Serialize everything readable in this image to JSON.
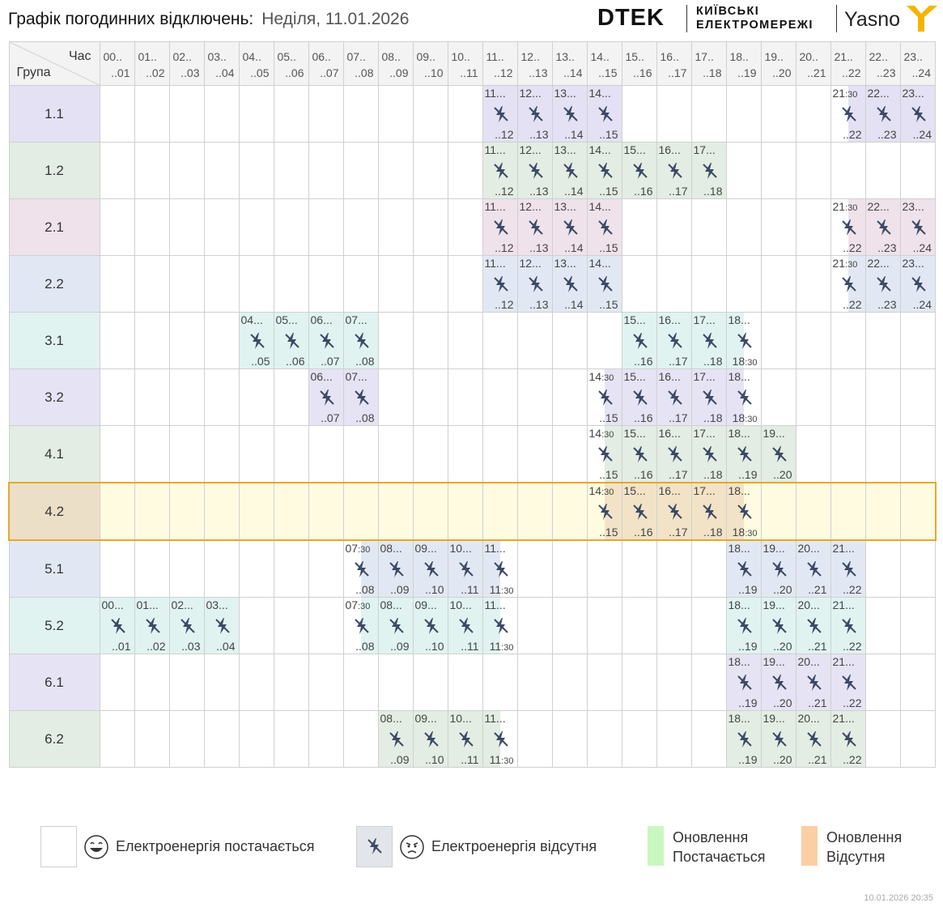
{
  "header": {
    "title": "Графік погодинних відключень:",
    "date": "Неділя, 11.01.2026",
    "logo_dtek": "DTEK",
    "logo_kyiv_line1": "КИЇВСЬКІ",
    "logo_kyiv_line2": "ЕЛЕКТРОМЕРЕЖІ",
    "logo_yasno": "Yasno"
  },
  "table": {
    "corner_hour": "Час",
    "corner_group": "Група",
    "hours": [
      {
        "from": "00..",
        "to": "..01"
      },
      {
        "from": "01..",
        "to": "..02"
      },
      {
        "from": "02..",
        "to": "..03"
      },
      {
        "from": "03..",
        "to": "..04"
      },
      {
        "from": "04..",
        "to": "..05"
      },
      {
        "from": "05..",
        "to": "..06"
      },
      {
        "from": "06..",
        "to": "..07"
      },
      {
        "from": "07..",
        "to": "..08"
      },
      {
        "from": "08..",
        "to": "..09"
      },
      {
        "from": "09..",
        "to": "..10"
      },
      {
        "from": "10..",
        "to": "..11"
      },
      {
        "from": "11..",
        "to": "..12"
      },
      {
        "from": "12..",
        "to": "..13"
      },
      {
        "from": "13..",
        "to": "..14"
      },
      {
        "from": "14..",
        "to": "..15"
      },
      {
        "from": "15..",
        "to": "..16"
      },
      {
        "from": "16..",
        "to": "..17"
      },
      {
        "from": "17..",
        "to": "..18"
      },
      {
        "from": "18..",
        "to": "..19"
      },
      {
        "from": "19..",
        "to": "..20"
      },
      {
        "from": "20..",
        "to": "..21"
      },
      {
        "from": "21..",
        "to": "..22"
      },
      {
        "from": "22..",
        "to": "..23"
      },
      {
        "from": "23..",
        "to": "..24"
      }
    ],
    "groups": [
      {
        "name": "1.1",
        "color": "#e3e1f3",
        "outages": [
          {
            "h": 11
          },
          {
            "h": 12
          },
          {
            "h": 13
          },
          {
            "h": 14
          },
          {
            "h": 21,
            "half": "second"
          },
          {
            "h": 22
          },
          {
            "h": 23
          }
        ]
      },
      {
        "name": "1.2",
        "color": "#e3ede3",
        "outages": [
          {
            "h": 11
          },
          {
            "h": 12
          },
          {
            "h": 13
          },
          {
            "h": 14
          },
          {
            "h": 15
          },
          {
            "h": 16
          },
          {
            "h": 17
          }
        ]
      },
      {
        "name": "2.1",
        "color": "#efe2eb",
        "outages": [
          {
            "h": 11
          },
          {
            "h": 12
          },
          {
            "h": 13
          },
          {
            "h": 14
          },
          {
            "h": 21,
            "half": "second"
          },
          {
            "h": 22
          },
          {
            "h": 23
          }
        ]
      },
      {
        "name": "2.2",
        "color": "#e2e8f3",
        "outages": [
          {
            "h": 11
          },
          {
            "h": 12
          },
          {
            "h": 13
          },
          {
            "h": 14
          },
          {
            "h": 21,
            "half": "second"
          },
          {
            "h": 22
          },
          {
            "h": 23
          }
        ]
      },
      {
        "name": "3.1",
        "color": "#e0f3f1",
        "outages": [
          {
            "h": 4
          },
          {
            "h": 5
          },
          {
            "h": 6
          },
          {
            "h": 7
          },
          {
            "h": 15
          },
          {
            "h": 16
          },
          {
            "h": 17
          },
          {
            "h": 18,
            "half": "first"
          }
        ]
      },
      {
        "name": "3.2",
        "color": "#e6e3f4",
        "outages": [
          {
            "h": 6
          },
          {
            "h": 7
          },
          {
            "h": 14,
            "half": "second"
          },
          {
            "h": 15
          },
          {
            "h": 16
          },
          {
            "h": 17
          },
          {
            "h": 18,
            "half": "first"
          }
        ]
      },
      {
        "name": "4.1",
        "color": "#e3ede3",
        "outages": [
          {
            "h": 14,
            "half": "second"
          },
          {
            "h": 15
          },
          {
            "h": 16
          },
          {
            "h": 17
          },
          {
            "h": 18
          },
          {
            "h": 19
          }
        ]
      },
      {
        "name": "4.2",
        "color": "#ecdfc8",
        "highlight": true,
        "row_bg": "#fffbe0",
        "cell_color": "#f2e3c7",
        "outages": [
          {
            "h": 14,
            "half": "second"
          },
          {
            "h": 15
          },
          {
            "h": 16
          },
          {
            "h": 17
          },
          {
            "h": 18,
            "half": "first"
          }
        ]
      },
      {
        "name": "5.1",
        "color": "#e2e8f3",
        "outages": [
          {
            "h": 7,
            "half": "second"
          },
          {
            "h": 8
          },
          {
            "h": 9
          },
          {
            "h": 10
          },
          {
            "h": 11,
            "half": "first"
          },
          {
            "h": 18
          },
          {
            "h": 19
          },
          {
            "h": 20
          },
          {
            "h": 21
          }
        ]
      },
      {
        "name": "5.2",
        "color": "#e0f3f1",
        "outages": [
          {
            "h": 0
          },
          {
            "h": 1
          },
          {
            "h": 2
          },
          {
            "h": 3
          },
          {
            "h": 7,
            "half": "second"
          },
          {
            "h": 8
          },
          {
            "h": 9
          },
          {
            "h": 10
          },
          {
            "h": 11,
            "half": "first"
          },
          {
            "h": 18
          },
          {
            "h": 19
          },
          {
            "h": 20
          },
          {
            "h": 21
          }
        ]
      },
      {
        "name": "6.1",
        "color": "#e6e3f4",
        "outages": [
          {
            "h": 18
          },
          {
            "h": 19
          },
          {
            "h": 20
          },
          {
            "h": 21
          }
        ]
      },
      {
        "name": "6.2",
        "color": "#e3ede3",
        "outages": [
          {
            "h": 8
          },
          {
            "h": 9
          },
          {
            "h": 10
          },
          {
            "h": 11,
            "half": "first"
          },
          {
            "h": 18
          },
          {
            "h": 19
          },
          {
            "h": 20
          },
          {
            "h": 21
          }
        ]
      }
    ]
  },
  "legend": {
    "supplied": "Електроенергія постачається",
    "absent": "Електроенергія відсутня",
    "update_supplied_1": "Оновлення",
    "update_supplied_2": "Постачається",
    "update_absent_1": "Оновлення",
    "update_absent_2": "Відсутня",
    "colors": {
      "absent_box": "#e2e6ea",
      "update_supplied": "#c9f7c0",
      "update_absent": "#fccea4"
    }
  },
  "timestamp": "10.01.2026   20:35"
}
